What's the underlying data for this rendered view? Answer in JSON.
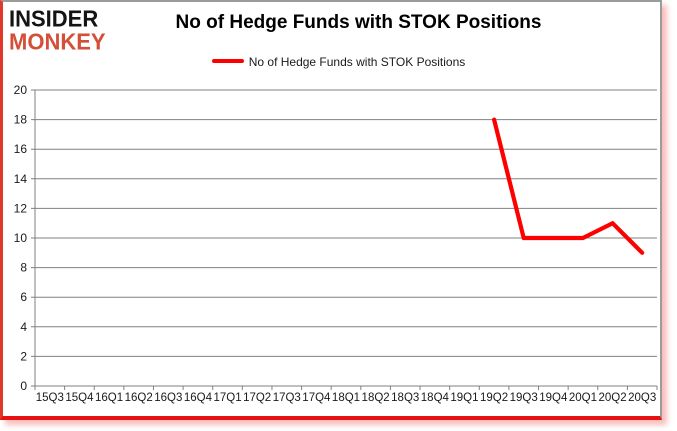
{
  "logo": {
    "line1": "INSIDER",
    "line2": "MONKEY"
  },
  "header": {
    "title": "No of Hedge Funds with STOK Positions"
  },
  "legend": {
    "label": "No of Hedge Funds with STOK Positions"
  },
  "colors": {
    "series_line": "#ff0000",
    "gridline": "#808080",
    "axis_line": "#808080",
    "axis_text": "#1a1a1a",
    "frame_red": "#e81111",
    "frame_gray": "#9b9b9b",
    "logo_monkey": "#d54e38",
    "logo_insider": "#141414"
  },
  "chart_data": {
    "type": "line",
    "title": "No of Hedge Funds with STOK Positions",
    "xlabel": "",
    "ylabel": "",
    "categories": [
      "15Q3",
      "15Q4",
      "16Q1",
      "16Q2",
      "16Q3",
      "16Q4",
      "17Q1",
      "17Q2",
      "17Q3",
      "17Q4",
      "18Q1",
      "18Q2",
      "18Q3",
      "18Q4",
      "19Q1",
      "19Q2",
      "19Q3",
      "19Q4",
      "20Q1",
      "20Q2",
      "20Q3"
    ],
    "series": [
      {
        "name": "No of Hedge Funds with STOK Positions",
        "color": "#ff0000",
        "values": [
          null,
          null,
          null,
          null,
          null,
          null,
          null,
          null,
          null,
          null,
          null,
          null,
          null,
          null,
          null,
          18,
          10,
          10,
          10,
          11,
          9
        ]
      }
    ],
    "ylim": [
      0,
      20
    ],
    "ytick_step": 2,
    "grid": true,
    "legend_position": "top-center"
  }
}
